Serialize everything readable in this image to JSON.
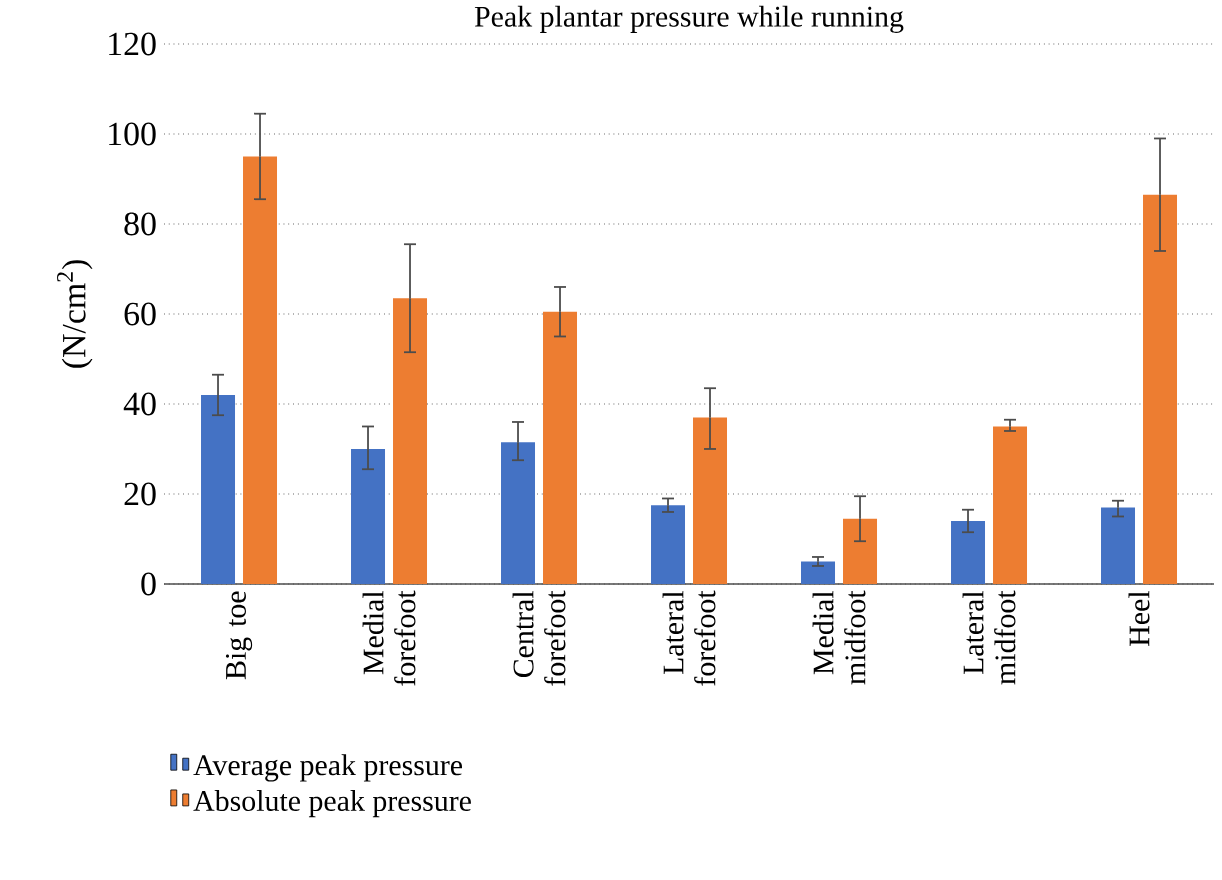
{
  "chart_data": {
    "type": "bar",
    "title": "Peak plantar pressure while running",
    "ylabel": "(N/cm$^{2}$)",
    "categories": [
      "Big toe",
      "Medial forefoot",
      "Central forefoot",
      "Lateral forefoot",
      "Medial midfoot",
      "Lateral midfoot",
      "Heel"
    ],
    "series": [
      {
        "name": "Average peak pressure",
        "color": "#4472c4",
        "values": [
          42,
          30,
          31.5,
          17.5,
          5,
          14,
          17
        ],
        "errors": [
          [
            37.5,
            46.5
          ],
          [
            25.5,
            35
          ],
          [
            27.5,
            36
          ],
          [
            16,
            19
          ],
          [
            4,
            6
          ],
          [
            11.5,
            16.5
          ],
          [
            15,
            18.5
          ]
        ]
      },
      {
        "name": "Absolute peak pressure",
        "color": "#ed7d31",
        "values": [
          95,
          63.5,
          60.5,
          37,
          14.5,
          35,
          86.5
        ],
        "errors": [
          [
            85.5,
            104.5
          ],
          [
            51.5,
            75.5
          ],
          [
            55,
            66
          ],
          [
            30,
            43.5
          ],
          [
            9.5,
            19.5
          ],
          [
            34,
            36.5
          ],
          [
            74,
            99
          ]
        ]
      }
    ],
    "ylim": [
      0,
      120
    ],
    "yticks": [
      0,
      20,
      40,
      60,
      80,
      100,
      120
    ],
    "grid": "y",
    "legend": "bottom left"
  }
}
